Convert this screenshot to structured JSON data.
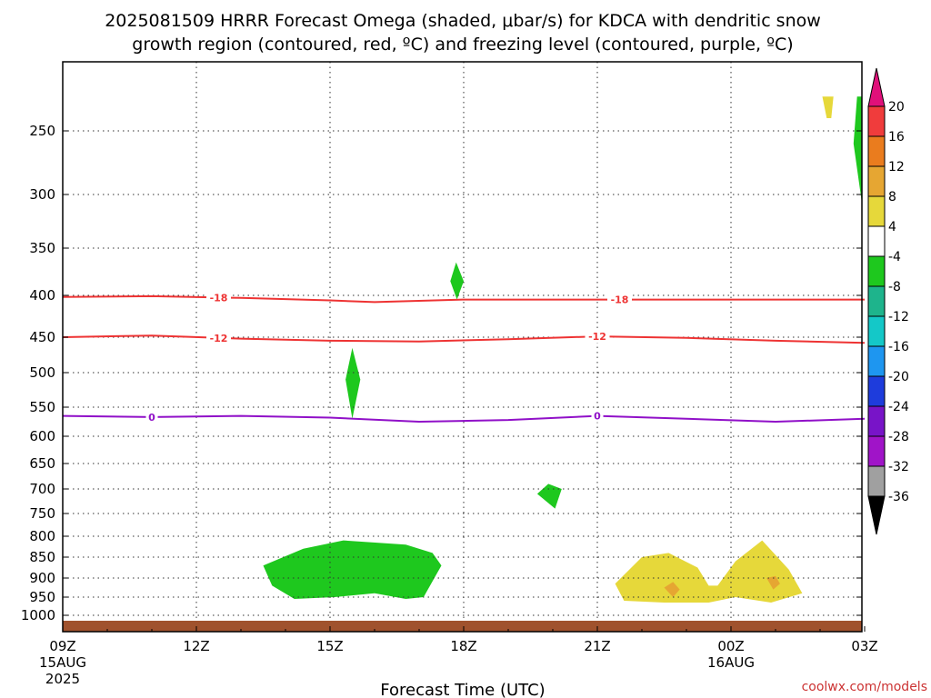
{
  "title_line1": "2025081509 HRRR Forecast Omega (shaded, μbar/s) for KDCA with dendritic snow",
  "title_line2": "growth region (contoured, red, ºC) and freezing level (contoured, purple, ºC)",
  "credit": "coolwx.com/models",
  "chart_data": {
    "type": "heatmap",
    "title": "2025081509 HRRR Forecast Omega (shaded, μbar/s) for KDCA with dendritic snow growth region (contoured, red, ºC) and freezing level (contoured, purple, ºC)",
    "xlabel": "Forecast Time (UTC)",
    "ylabel": "",
    "x_range_hours": [
      0,
      18
    ],
    "x_ticks": [
      {
        "hour": 0,
        "label": "09Z",
        "sub1": "15AUG",
        "sub2": "2025"
      },
      {
        "hour": 3,
        "label": "12Z",
        "sub1": "",
        "sub2": ""
      },
      {
        "hour": 6,
        "label": "15Z",
        "sub1": "",
        "sub2": ""
      },
      {
        "hour": 9,
        "label": "18Z",
        "sub1": "",
        "sub2": ""
      },
      {
        "hour": 12,
        "label": "21Z",
        "sub1": "",
        "sub2": ""
      },
      {
        "hour": 15,
        "label": "00Z",
        "sub1": "16AUG",
        "sub2": ""
      },
      {
        "hour": 18,
        "label": "03Z",
        "sub1": "",
        "sub2": ""
      }
    ],
    "y_axis": "pressure (mb), inverted",
    "y_ticks": [
      250,
      300,
      350,
      400,
      450,
      500,
      550,
      600,
      650,
      700,
      750,
      800,
      850,
      900,
      950,
      1000
    ],
    "colorbar": {
      "labels": [
        "20",
        "16",
        "12",
        "8",
        "4",
        "-4",
        "-8",
        "-12",
        "-16",
        "-20",
        "-24",
        "-28",
        "-32",
        "-36"
      ],
      "bins": [
        {
          "range": "> 20",
          "color": "#e0107a"
        },
        {
          "range": "16 to 20",
          "color": "#f03c3c"
        },
        {
          "range": "12 to 16",
          "color": "#ea7c1e"
        },
        {
          "range": "8 to 12",
          "color": "#e6a632"
        },
        {
          "range": "4 to 8",
          "color": "#e6d83a"
        },
        {
          "range": "-4 to 4",
          "color": "#ffffff"
        },
        {
          "range": "-8 to -4",
          "color": "#1ec81e"
        },
        {
          "range": "-12 to -8",
          "color": "#1eb48c"
        },
        {
          "range": "-16 to -12",
          "color": "#14c8c8"
        },
        {
          "range": "-20 to -16",
          "color": "#1e96f0"
        },
        {
          "range": "-24 to -20",
          "color": "#1e3cdc"
        },
        {
          "range": "-28 to -24",
          "color": "#7814c8"
        },
        {
          "range": "-32 to -28",
          "color": "#a014c8"
        },
        {
          "range": "-36 to -32",
          "color": "#a0a0a0"
        },
        {
          "range": "< -36",
          "color": "#000000"
        }
      ]
    },
    "contours": [
      {
        "level": "-18",
        "color": "#ee3333",
        "label_hours": [
          3.5,
          12.5
        ],
        "points": [
          [
            0,
            402
          ],
          [
            2,
            401
          ],
          [
            4,
            403
          ],
          [
            6,
            406
          ],
          [
            7,
            408
          ],
          [
            9,
            405
          ],
          [
            12,
            405
          ],
          [
            15,
            405
          ],
          [
            18,
            405
          ]
        ]
      },
      {
        "level": "-12",
        "color": "#ee3333",
        "label_hours": [
          3.5,
          12
        ],
        "points": [
          [
            0,
            450
          ],
          [
            2,
            448
          ],
          [
            4,
            452
          ],
          [
            6,
            455
          ],
          [
            8,
            456
          ],
          [
            10,
            453
          ],
          [
            12,
            449
          ],
          [
            14,
            451
          ],
          [
            16,
            455
          ],
          [
            18,
            458
          ]
        ]
      },
      {
        "level": "0",
        "color": "#9010c8",
        "label_hours": [
          2,
          12
        ],
        "points": [
          [
            0,
            565
          ],
          [
            2,
            567
          ],
          [
            4,
            565
          ],
          [
            6,
            568
          ],
          [
            8,
            575
          ],
          [
            10,
            572
          ],
          [
            12,
            565
          ],
          [
            14,
            570
          ],
          [
            16,
            575
          ],
          [
            18,
            570
          ]
        ]
      }
    ],
    "shaded_regions": [
      {
        "value_bin": "-8 to -4",
        "pts": [
          [
            17.83,
            223
          ],
          [
            18.93,
            223
          ],
          [
            19.27,
            300
          ],
          [
            18.2,
            308
          ],
          [
            17.75,
            260
          ]
        ]
      },
      {
        "value_bin": "-12 to -8",
        "pts": [
          [
            18.3,
            263
          ],
          [
            18.42,
            255
          ],
          [
            18.53,
            270
          ],
          [
            18.42,
            285
          ]
        ]
      },
      {
        "value_bin": "4 to 8",
        "pts": [
          [
            17.05,
            223
          ],
          [
            17.3,
            223
          ],
          [
            17.25,
            240
          ],
          [
            17.15,
            240
          ]
        ]
      },
      {
        "value_bin": "-8 to -4",
        "pts": [
          [
            20.55,
            233
          ],
          [
            21.1,
            250
          ],
          [
            21.4,
            275
          ],
          [
            21.05,
            292
          ],
          [
            20.6,
            272
          ]
        ]
      },
      {
        "value_bin": "4 to 8",
        "pts": [
          [
            21.78,
            350
          ],
          [
            21.9,
            362
          ],
          [
            21.85,
            380
          ],
          [
            21.72,
            365
          ]
        ]
      },
      {
        "value_bin": "-8 to -4",
        "pts": [
          [
            8.83,
            365
          ],
          [
            9.0,
            385
          ],
          [
            8.85,
            405
          ],
          [
            8.7,
            385
          ]
        ]
      },
      {
        "value_bin": "-8 to -4",
        "pts": [
          [
            6.5,
            465
          ],
          [
            6.68,
            510
          ],
          [
            6.5,
            570
          ],
          [
            6.35,
            510
          ]
        ]
      },
      {
        "value_bin": "4 to 8",
        "pts": [
          [
            20.5,
            455
          ],
          [
            20.9,
            470
          ],
          [
            21.25,
            540
          ],
          [
            20.9,
            600
          ],
          [
            20.45,
            540
          ],
          [
            20.25,
            490
          ]
        ]
      },
      {
        "value_bin": "-8 to -4",
        "pts": [
          [
            10.9,
            690
          ],
          [
            11.2,
            700
          ],
          [
            11.05,
            740
          ],
          [
            10.65,
            710
          ]
        ]
      },
      {
        "value_bin": "-8 to -4",
        "pts": [
          [
            4.5,
            870
          ],
          [
            5.4,
            830
          ],
          [
            6.3,
            810
          ],
          [
            7.7,
            820
          ],
          [
            8.3,
            840
          ],
          [
            8.5,
            870
          ],
          [
            8.1,
            950
          ],
          [
            7.7,
            955
          ],
          [
            7.0,
            940
          ],
          [
            6.1,
            950
          ],
          [
            5.2,
            955
          ],
          [
            4.7,
            920
          ]
        ]
      },
      {
        "value_bin": "4 to 8",
        "pts": [
          [
            12.4,
            915
          ],
          [
            13.0,
            850
          ],
          [
            13.6,
            840
          ],
          [
            14.25,
            875
          ],
          [
            14.5,
            920
          ],
          [
            14.7,
            920
          ],
          [
            15.1,
            860
          ],
          [
            15.7,
            810
          ],
          [
            16.3,
            880
          ],
          [
            16.6,
            940
          ],
          [
            15.9,
            965
          ],
          [
            15.1,
            950
          ],
          [
            14.5,
            965
          ],
          [
            13.5,
            965
          ],
          [
            12.6,
            960
          ]
        ]
      },
      {
        "value_bin": "8 to 12",
        "pts": [
          [
            13.5,
            925
          ],
          [
            13.7,
            910
          ],
          [
            13.85,
            930
          ],
          [
            13.7,
            950
          ]
        ]
      },
      {
        "value_bin": "8 to 12",
        "pts": [
          [
            15.8,
            900
          ],
          [
            16.0,
            895
          ],
          [
            16.1,
            915
          ],
          [
            15.95,
            930
          ]
        ]
      },
      {
        "value_bin": "-8 to -4",
        "pts": [
          [
            17.95,
            850
          ],
          [
            18.4,
            815
          ],
          [
            19.0,
            860
          ],
          [
            20.2,
            850
          ],
          [
            21.7,
            870
          ],
          [
            22.4,
            925
          ],
          [
            22.4,
            1000
          ],
          [
            20.8,
            1000
          ],
          [
            19.3,
            985
          ],
          [
            19.2,
            920
          ],
          [
            18.2,
            870
          ]
        ]
      },
      {
        "value_bin": "-12 to -8",
        "pts": [
          [
            19.7,
            900
          ],
          [
            20.4,
            880
          ],
          [
            21.3,
            890
          ],
          [
            22.0,
            925
          ],
          [
            22.4,
            945
          ],
          [
            22.4,
            990
          ],
          [
            21.3,
            990
          ],
          [
            20.3,
            975
          ],
          [
            19.8,
            945
          ]
        ]
      },
      {
        "value_bin": "-16 to -12",
        "pts": [
          [
            20.6,
            910
          ],
          [
            21.4,
            910
          ],
          [
            22.0,
            950
          ],
          [
            21.4,
            965
          ],
          [
            20.8,
            950
          ]
        ]
      },
      {
        "value_bin": "-20 to -16",
        "pts": [
          [
            21.55,
            925
          ],
          [
            21.95,
            935
          ],
          [
            21.9,
            955
          ],
          [
            21.6,
            950
          ]
        ]
      }
    ]
  }
}
